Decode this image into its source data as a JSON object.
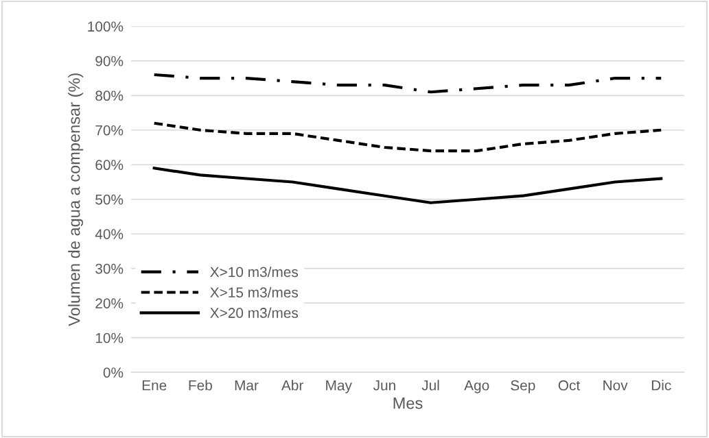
{
  "chart_data": {
    "type": "line",
    "xlabel": "Mes",
    "ylabel": "Volumen de agua a compensar (%)",
    "categories": [
      "Ene",
      "Feb",
      "Mar",
      "Abr",
      "May",
      "Jun",
      "Jul",
      "Ago",
      "Sep",
      "Oct",
      "Nov",
      "Dic"
    ],
    "series": [
      {
        "name": "X>10 m3/mes",
        "color": "#000000",
        "line_style": "dashdot",
        "values": [
          86,
          85,
          85,
          84,
          83,
          83,
          81,
          82,
          83,
          83,
          85,
          85
        ]
      },
      {
        "name": "X>15 m3/mes",
        "color": "#000000",
        "line_style": "dashed",
        "values": [
          72,
          70,
          69,
          69,
          67,
          65,
          64,
          64,
          66,
          67,
          69,
          70
        ]
      },
      {
        "name": "X>20 m3/mes",
        "color": "#000000",
        "line_style": "solid",
        "values": [
          59,
          57,
          56,
          55,
          53,
          51,
          49,
          50,
          51,
          53,
          55,
          56
        ]
      }
    ],
    "ylim": [
      0,
      100
    ],
    "yticks": [
      {
        "value": 0,
        "label": "0%"
      },
      {
        "value": 10,
        "label": "10%"
      },
      {
        "value": 20,
        "label": "20%"
      },
      {
        "value": 30,
        "label": "30%"
      },
      {
        "value": 40,
        "label": "40%"
      },
      {
        "value": 50,
        "label": "50%"
      },
      {
        "value": 60,
        "label": "60%"
      },
      {
        "value": 70,
        "label": "70%"
      },
      {
        "value": 80,
        "label": "80%"
      },
      {
        "value": 90,
        "label": "90%"
      },
      {
        "value": 100,
        "label": "100%"
      }
    ],
    "grid": "y",
    "legend": "bottom left",
    "marker": "none"
  }
}
